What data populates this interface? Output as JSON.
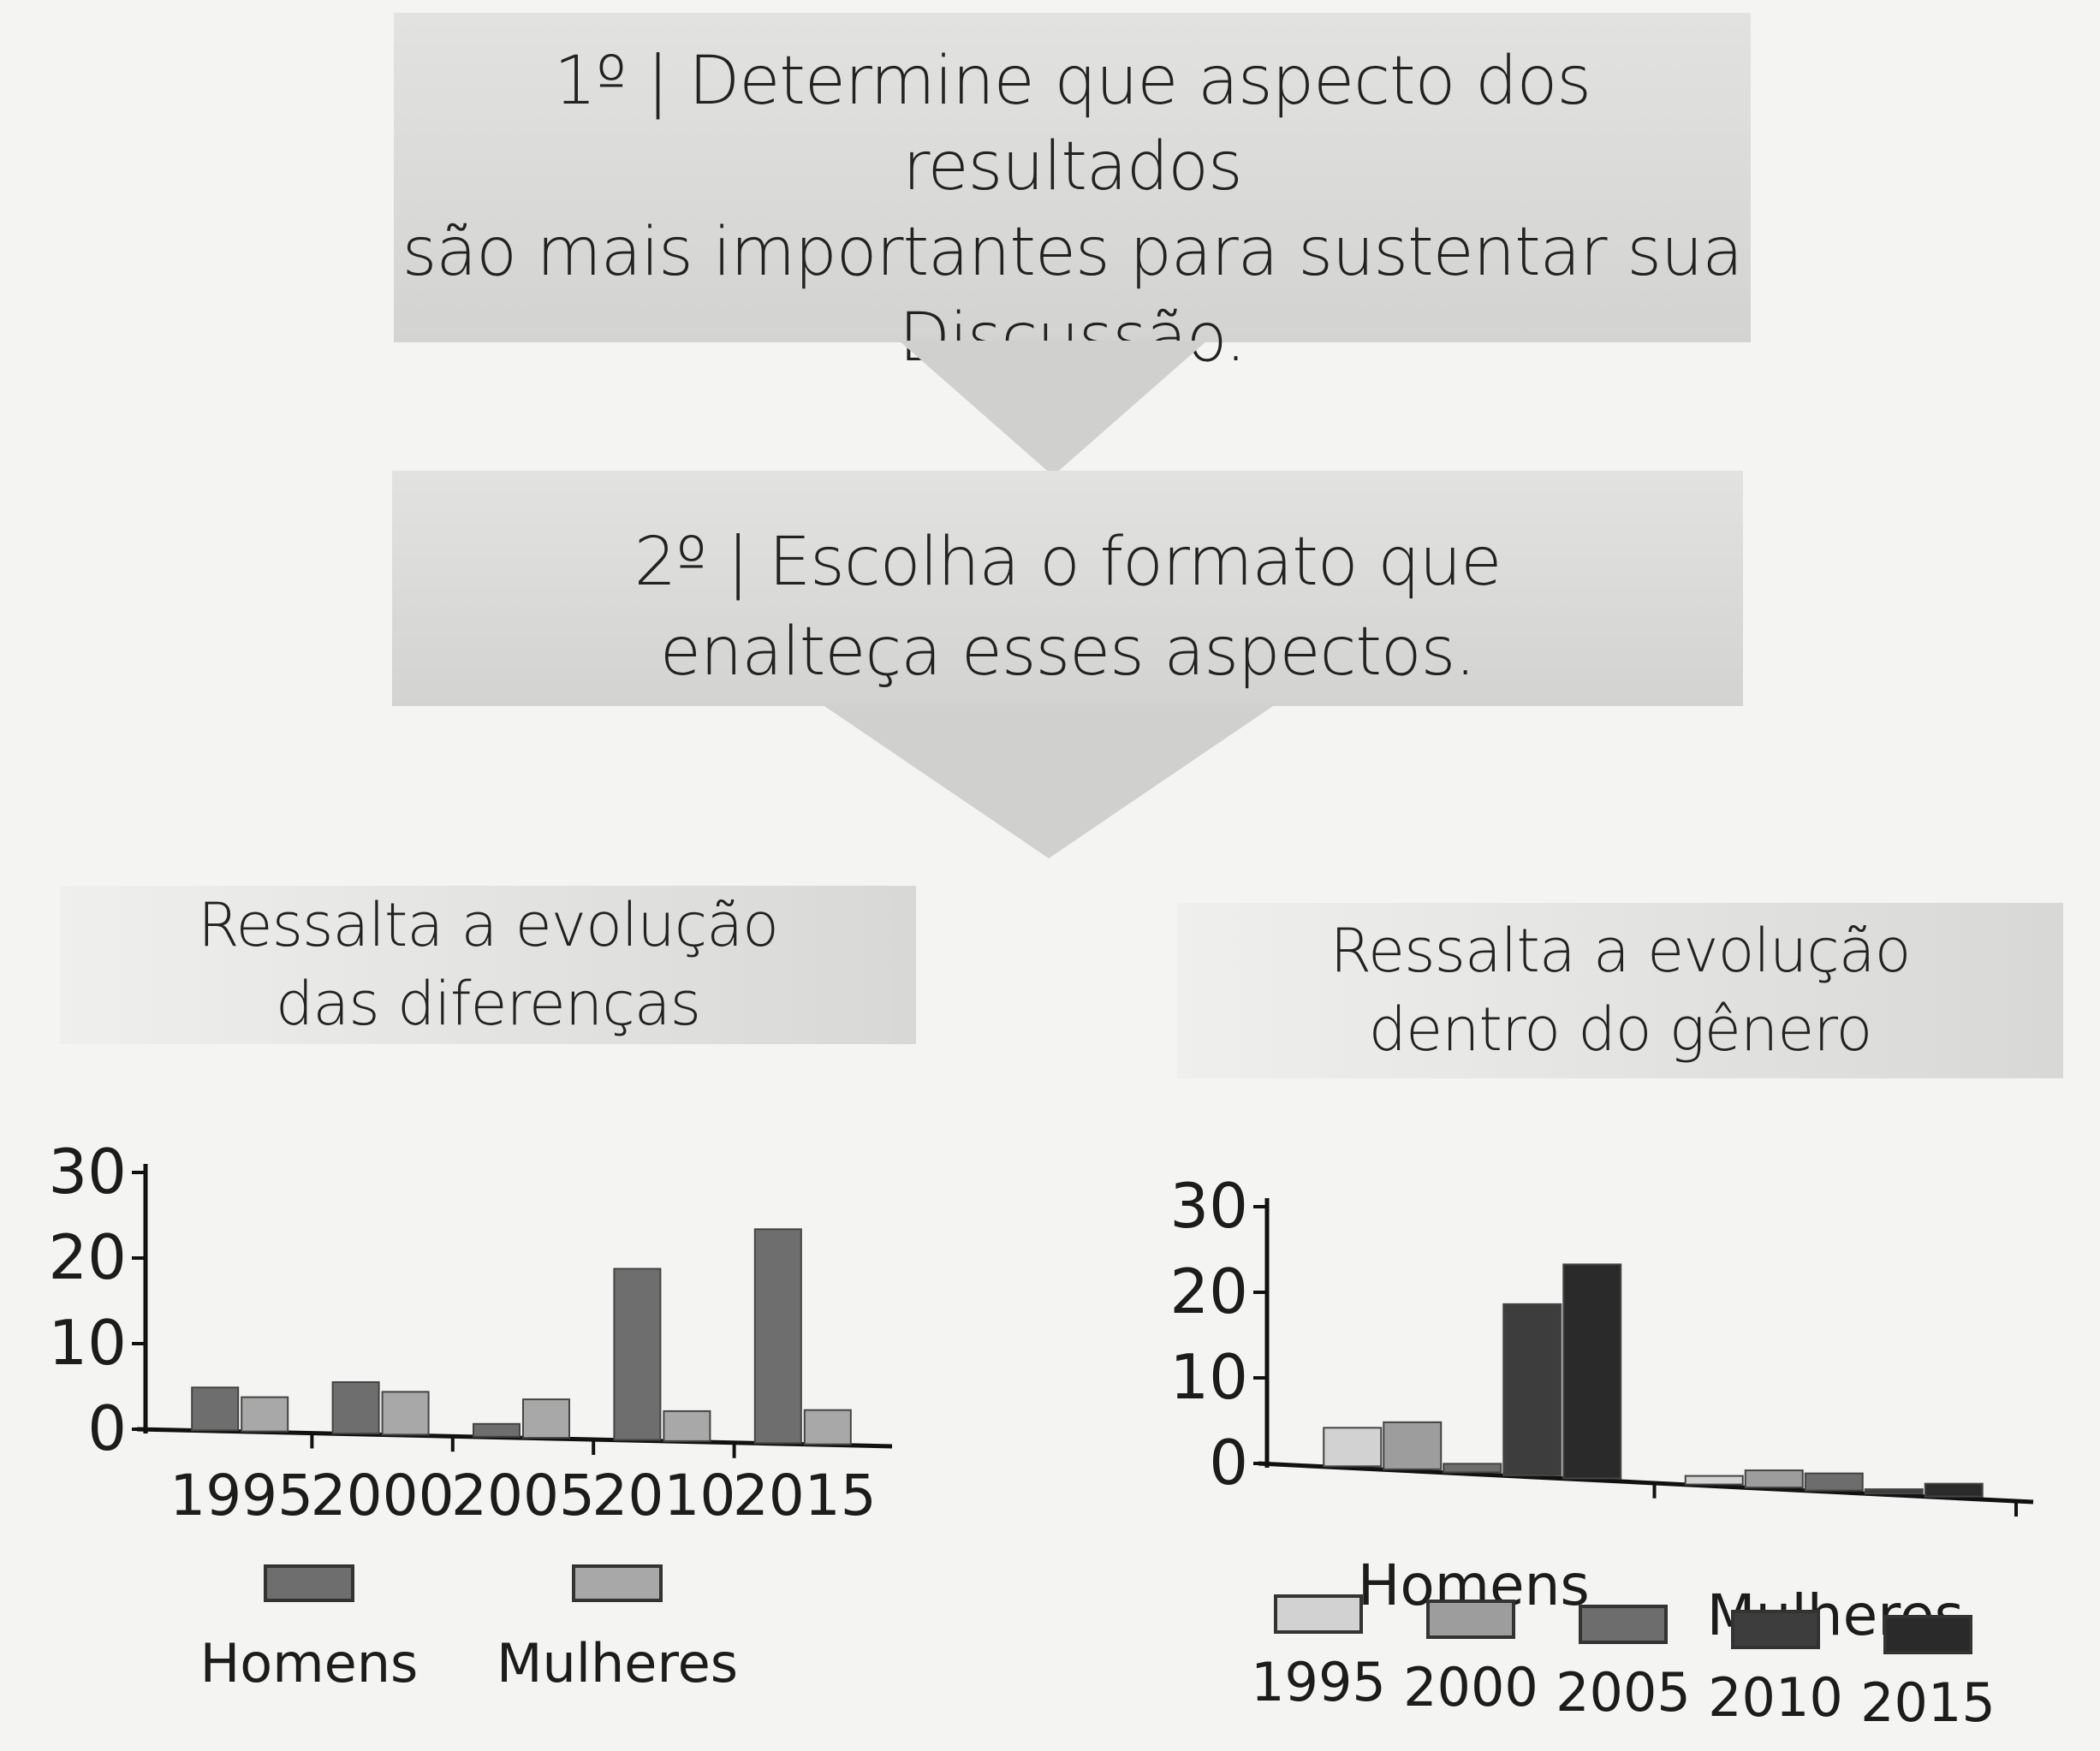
{
  "step1": {
    "lines": [
      "1º | Determine que aspecto dos resultados",
      "são mais importantes para sustentar sua",
      "Discussão."
    ]
  },
  "step2": {
    "lines": [
      "2º | Escolha o formato que",
      "enalteça esses aspectos."
    ]
  },
  "left_label": {
    "lines": [
      "Ressalta a evolução",
      "das diferenças"
    ]
  },
  "right_label": {
    "lines": [
      "Ressalta a evolução",
      "dentro do gênero"
    ]
  },
  "chart_data": [
    {
      "type": "bar",
      "categories": [
        "1995",
        "2000",
        "2005",
        "2010",
        "2015"
      ],
      "series": [
        {
          "name": "Homens",
          "values": [
            5,
            6,
            1.5,
            20,
            25
          ],
          "color": "#6e6e6e"
        },
        {
          "name": "Mulheres",
          "values": [
            4,
            5,
            4.5,
            3.5,
            4
          ],
          "color": "#a8a8a8"
        }
      ],
      "yticks": [
        0,
        10,
        20,
        30
      ],
      "ylim": [
        0,
        30
      ],
      "legend": "bottom"
    },
    {
      "type": "bar",
      "categories": [
        "Homens",
        "Mulheres"
      ],
      "series": [
        {
          "name": "1995",
          "values": [
            4.5,
            1
          ],
          "color": "#d2d2d2"
        },
        {
          "name": "2000",
          "values": [
            5.5,
            2
          ],
          "color": "#9d9d9d"
        },
        {
          "name": "2005",
          "values": [
            1,
            2
          ],
          "color": "#6d6d6d"
        },
        {
          "name": "2010",
          "values": [
            20,
            0.5
          ],
          "color": "#3d3d3d"
        },
        {
          "name": "2015",
          "values": [
            25,
            1.5
          ],
          "color": "#2a2a2a"
        }
      ],
      "yticks": [
        0,
        10,
        20,
        30
      ],
      "ylim": [
        0,
        30
      ],
      "legend": "bottom"
    }
  ]
}
